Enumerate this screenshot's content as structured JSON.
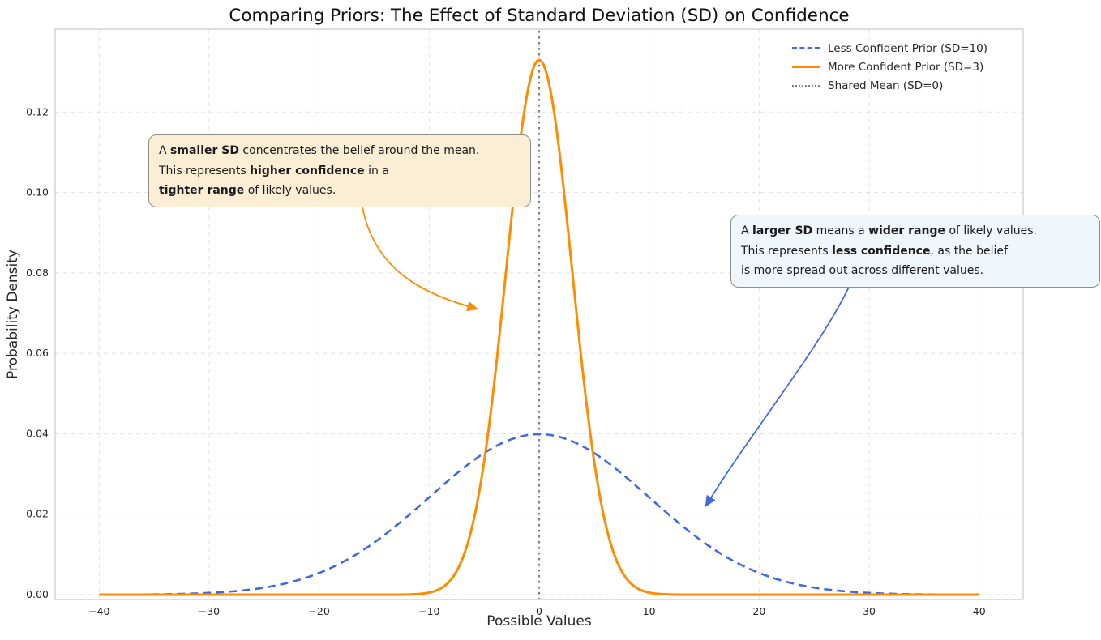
{
  "chart_data": {
    "type": "line",
    "title": "Comparing Priors: The Effect of Standard Deviation (SD) on Confidence",
    "xlabel": "Possible Values",
    "ylabel": "Probability Density",
    "xlim": [
      -44,
      44
    ],
    "ylim": [
      -0.0012,
      0.1406
    ],
    "x_ticks": [
      -40,
      -30,
      -20,
      -10,
      0,
      10,
      20,
      30,
      40
    ],
    "y_ticks": [
      0,
      0.02,
      0.04,
      0.06,
      0.08,
      0.1,
      0.12
    ],
    "grid": true,
    "legend_position": "upper right",
    "series": [
      {
        "name": "Less Confident Prior (SD=10)",
        "distribution": "normal_pdf",
        "mean": 0,
        "sd": 10,
        "peak_density": 0.0399,
        "x_range": [
          -40,
          40
        ],
        "color": "#4169e1",
        "line_style": "dashed",
        "line_width": 2.6
      },
      {
        "name": "More Confident Prior (SD=3)",
        "distribution": "normal_pdf",
        "mean": 0,
        "sd": 3,
        "peak_density": 0.133,
        "x_range": [
          -40,
          40
        ],
        "color": "#ff8c00",
        "line_style": "solid",
        "line_width": 3
      }
    ],
    "vline": {
      "x": 0,
      "label": "Shared Mean (SD=0)",
      "color": "#7f7f7f",
      "line_style": "dotted"
    }
  },
  "annotations": [
    {
      "id": "smaller-sd-note",
      "bg": "#fbeed5",
      "border": "#8c8c8c",
      "arrow_color": "#ff8c00",
      "lines": [
        [
          {
            "t": "A "
          },
          {
            "t": "smaller SD",
            "b": true
          },
          {
            "t": " concentrates the belief around the mean."
          }
        ],
        [
          {
            "t": "This represents "
          },
          {
            "t": "higher confidence",
            "b": true
          },
          {
            "t": " in a"
          }
        ],
        [
          {
            "t": "tighter range",
            "b": true
          },
          {
            "t": " of likely values."
          }
        ]
      ]
    },
    {
      "id": "larger-sd-note",
      "bg": "#eff6fc",
      "border": "#8c8c8c",
      "arrow_color": "#4169e1",
      "lines": [
        [
          {
            "t": "A "
          },
          {
            "t": "larger SD",
            "b": true
          },
          {
            "t": " means a "
          },
          {
            "t": "wider range",
            "b": true
          },
          {
            "t": " of likely values."
          }
        ],
        [
          {
            "t": "This represents "
          },
          {
            "t": "less confidence",
            "b": true
          },
          {
            "t": ", as the belief"
          }
        ],
        [
          {
            "t": "is more spread out across different values."
          }
        ]
      ]
    }
  ]
}
